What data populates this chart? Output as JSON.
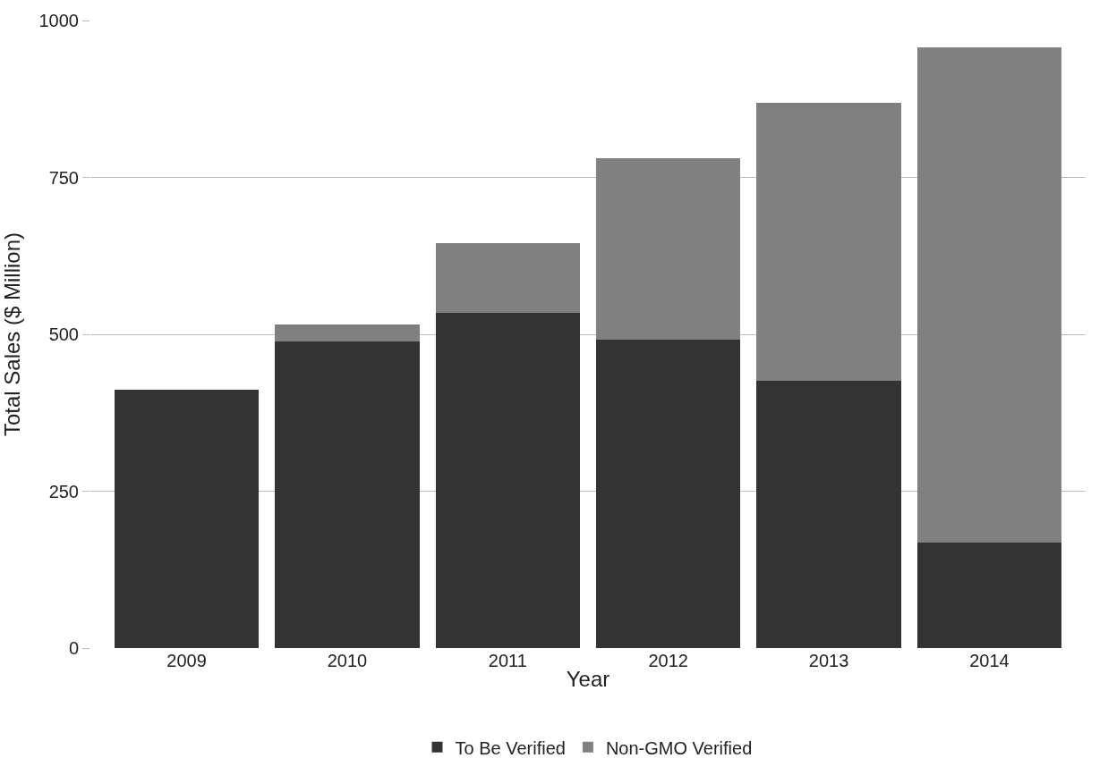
{
  "chart_data": {
    "type": "bar",
    "stacked": true,
    "xlabel": "Year",
    "ylabel": "Total Sales ($ Million)",
    "categories": [
      "2009",
      "2010",
      "2011",
      "2012",
      "2013",
      "2014"
    ],
    "series": [
      {
        "name": "To Be Verified",
        "color": "#333333",
        "values": [
          412,
          489,
          534,
          491,
          426,
          168
        ]
      },
      {
        "name": "Non-GMO Verified",
        "color": "#808080",
        "values": [
          0,
          27,
          111,
          290,
          443,
          789
        ]
      }
    ],
    "ylim": [
      0,
      1000
    ],
    "yticks": [
      0,
      250,
      500,
      750,
      1000
    ],
    "grid": "y",
    "legend": "bottom"
  }
}
